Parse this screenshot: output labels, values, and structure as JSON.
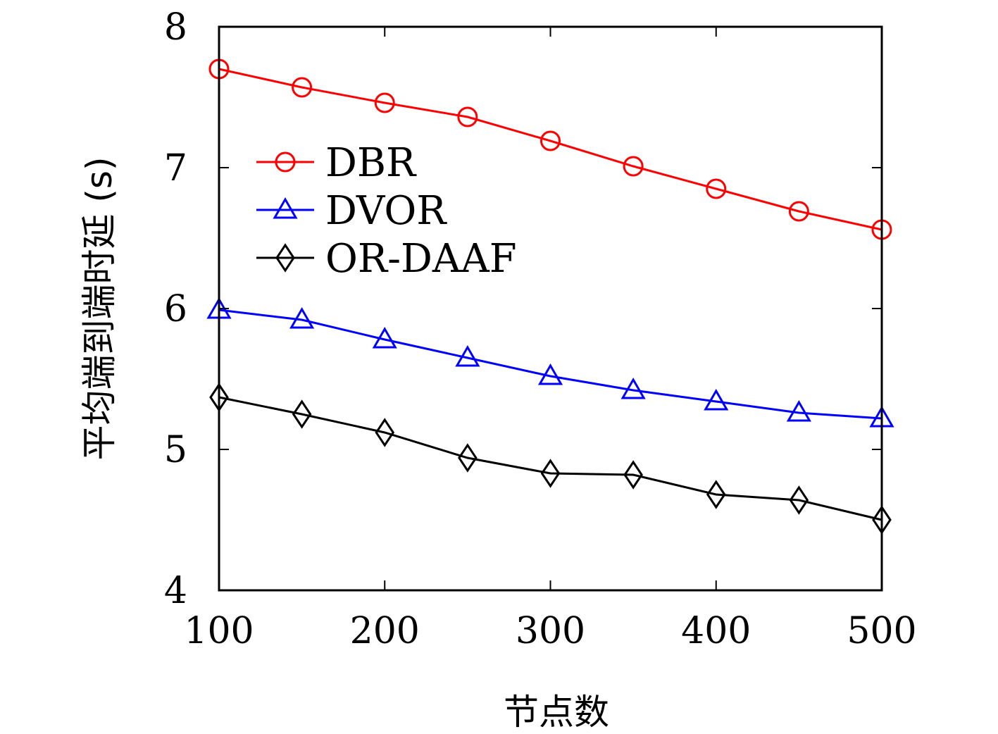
{
  "chart_data": {
    "type": "line",
    "xlabel": "节点数",
    "ylabel": "平均端到端时延 (s)",
    "xlim": [
      100,
      500
    ],
    "ylim": [
      4,
      8
    ],
    "x": [
      100,
      150,
      200,
      250,
      300,
      350,
      400,
      450,
      500
    ],
    "xticks": [
      "100",
      "200",
      "300",
      "400",
      "500"
    ],
    "yticks": [
      "4",
      "5",
      "6",
      "7",
      "8"
    ],
    "grid": false,
    "legend_position": "upper-left",
    "series": [
      {
        "name": "DBR",
        "color": "#ff0000",
        "marker": "circle",
        "values": [
          7.7,
          7.57,
          7.46,
          7.36,
          7.19,
          7.01,
          6.85,
          6.69,
          6.56
        ]
      },
      {
        "name": "DVOR",
        "color": "#0000ff",
        "marker": "triangle",
        "values": [
          5.99,
          5.92,
          5.78,
          5.65,
          5.52,
          5.42,
          5.34,
          5.26,
          5.22
        ]
      },
      {
        "name": "OR-DAAF",
        "color": "#000000",
        "marker": "diamond",
        "values": [
          5.37,
          5.25,
          5.12,
          4.94,
          4.83,
          4.82,
          4.68,
          4.64,
          4.5
        ]
      }
    ]
  }
}
